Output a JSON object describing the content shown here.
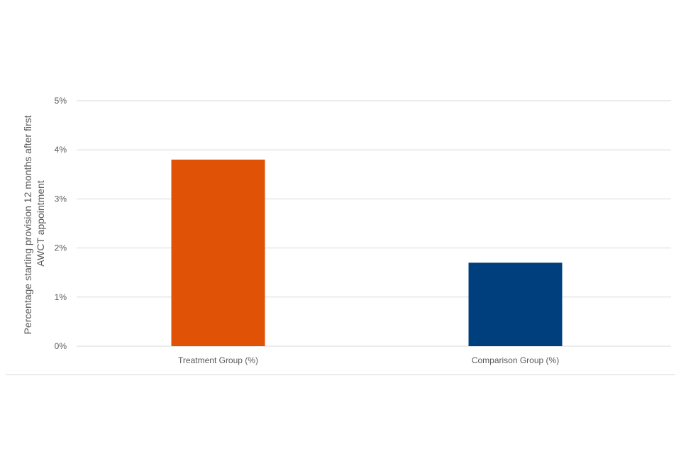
{
  "chart_data": {
    "type": "bar",
    "categories": [
      "Treatment Group (%)",
      "Comparison Group (%)"
    ],
    "values": [
      3.8,
      1.7
    ],
    "colors": [
      "#E05206",
      "#003F7D"
    ],
    "title": "",
    "xlabel": "",
    "ylabel_lines": [
      "Percentage starting provision 12 months after first",
      "AWCT appointment"
    ],
    "ylim": [
      0,
      5
    ],
    "yticks": [
      0,
      1,
      2,
      3,
      4,
      5
    ],
    "ytick_labels": [
      "0%",
      "1%",
      "2%",
      "3%",
      "4%",
      "5%"
    ],
    "grid": true,
    "legend": "none",
    "gridline_color": "#D9D9D9"
  }
}
